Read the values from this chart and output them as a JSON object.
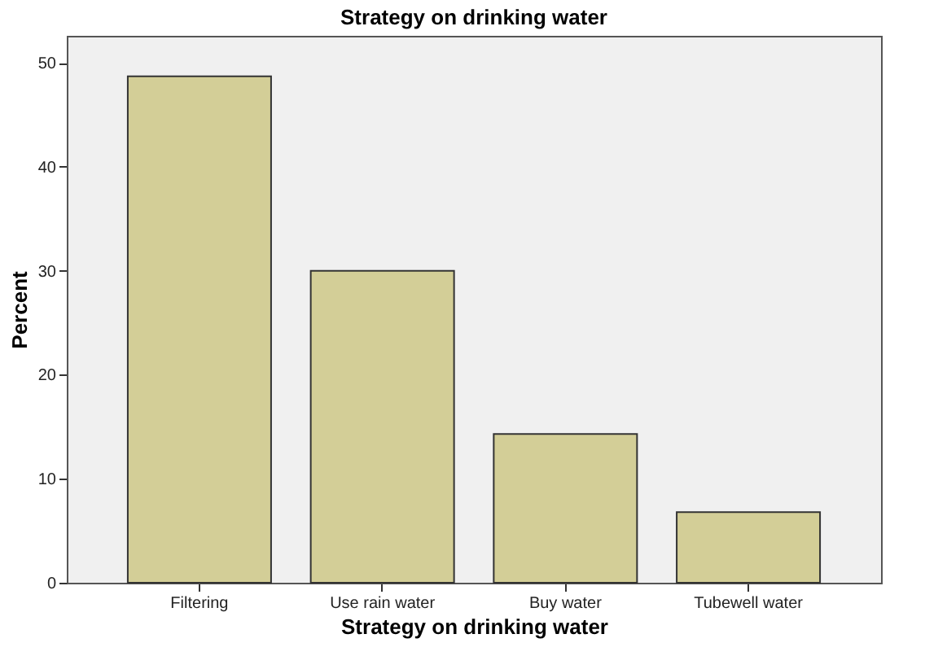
{
  "chart_data": {
    "type": "bar",
    "title": "Strategy on drinking water",
    "xlabel": "Strategy on drinking water",
    "ylabel": "Percent",
    "categories": [
      "Filtering",
      "Use rain water",
      "Buy water",
      "Tubewell water"
    ],
    "values": [
      48.7,
      30.0,
      14.3,
      6.8
    ],
    "color": "#d3ce97",
    "ylim": [
      0,
      52.6
    ],
    "yticks": [
      0,
      10,
      20,
      30,
      40,
      50
    ],
    "grid": false
  }
}
